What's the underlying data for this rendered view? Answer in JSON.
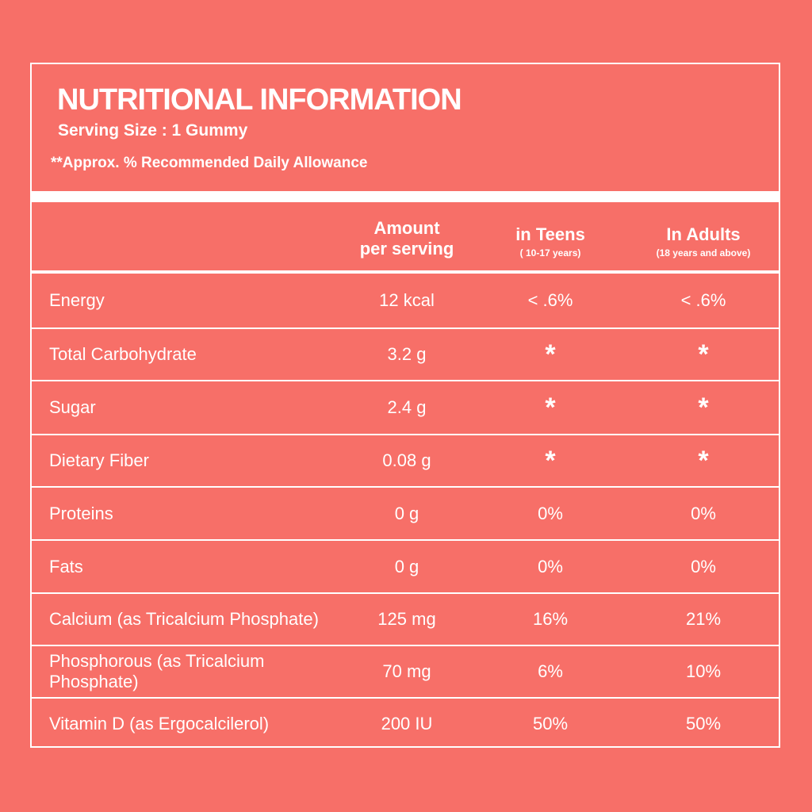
{
  "header": {
    "title": "NUTRITIONAL INFORMATION",
    "serving_size": "Serving Size : 1 Gummy",
    "note": "**Approx. % Recommended Daily Allowance"
  },
  "columns": {
    "amount_line1": "Amount",
    "amount_line2": "per serving",
    "teens": "in Teens",
    "teens_sub": "( 10-17 years)",
    "adults": "In Adults",
    "adults_sub": "(18 years and above)"
  },
  "rows": [
    {
      "name": "Energy",
      "amount": "12 kcal",
      "teens": "< .6%",
      "adults": "< .6%"
    },
    {
      "name": "Total Carbohydrate",
      "amount": "3.2 g",
      "teens": "*",
      "adults": "*"
    },
    {
      "name": "Sugar",
      "amount": "2.4 g",
      "teens": "*",
      "adults": "*"
    },
    {
      "name": "Dietary Fiber",
      "amount": "0.08 g",
      "teens": "*",
      "adults": "*"
    },
    {
      "name": "Proteins",
      "amount": "0 g",
      "teens": "0%",
      "adults": "0%"
    },
    {
      "name": "Fats",
      "amount": "0 g",
      "teens": "0%",
      "adults": "0%"
    },
    {
      "name": "Calcium (as Tricalcium Phosphate)",
      "amount": "125 mg",
      "teens": "16%",
      "adults": "21%"
    },
    {
      "name": "Phosphorous (as Tricalcium Phosphate)",
      "amount": "70 mg",
      "teens": "6%",
      "adults": "10%"
    },
    {
      "name": "Vitamin D (as Ergocalcilerol)",
      "amount": "200 IU",
      "teens": "50%",
      "adults": "50%"
    }
  ]
}
